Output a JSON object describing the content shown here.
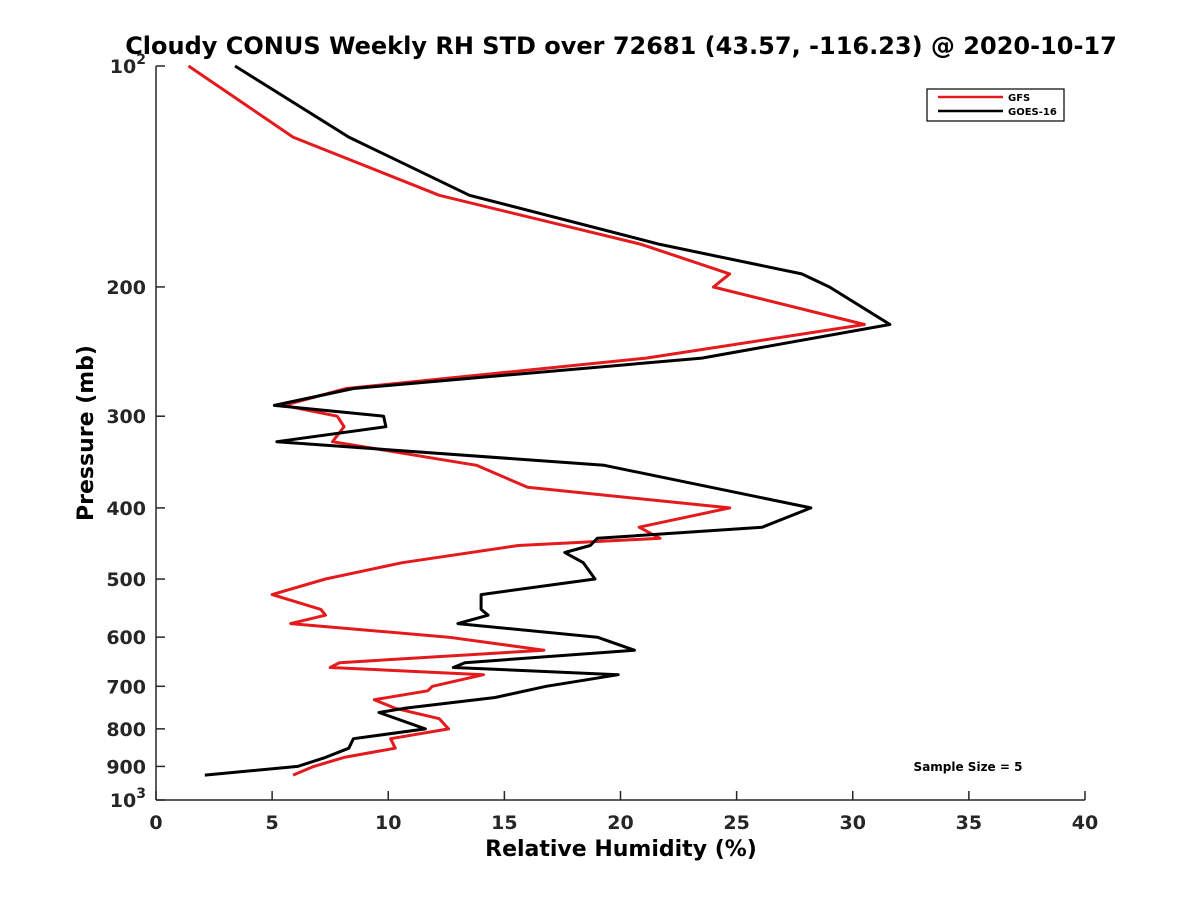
{
  "chart_data": {
    "type": "line",
    "title": "Cloudy CONUS Weekly RH STD over 72681 (43.57, -116.23) @ 2020-10-17",
    "xlabel": "Relative Humidity (%)",
    "ylabel": "Pressure (mb)",
    "xlim": [
      0,
      40
    ],
    "ylim": [
      100,
      1000
    ],
    "y_scale": "log",
    "y_reversed": true,
    "x_ticks": [
      "0",
      "5",
      "10",
      "15",
      "20",
      "25",
      "30",
      "35",
      "40"
    ],
    "y_ticks": [
      {
        "value": 100,
        "base": "10",
        "exp": "2"
      },
      {
        "value": 200,
        "label": "200"
      },
      {
        "value": 300,
        "label": "300"
      },
      {
        "value": 400,
        "label": "400"
      },
      {
        "value": 500,
        "label": "500"
      },
      {
        "value": 600,
        "label": "600"
      },
      {
        "value": 700,
        "label": "700"
      },
      {
        "value": 800,
        "label": "800"
      },
      {
        "value": 900,
        "label": "900"
      },
      {
        "value": 1000,
        "base": "10",
        "exp": "3"
      }
    ],
    "legend_position": "top-right",
    "annotation": "Sample Size = 5",
    "series": [
      {
        "name": "GFS",
        "color": "#e41a1c",
        "points": [
          [
            1.4,
            100
          ],
          [
            5.9,
            125
          ],
          [
            12.2,
            150
          ],
          [
            20.9,
            175
          ],
          [
            24.7,
            192
          ],
          [
            24.0,
            200
          ],
          [
            30.5,
            225
          ],
          [
            21.1,
            250
          ],
          [
            8.2,
            275
          ],
          [
            5.5,
            290
          ],
          [
            7.8,
            300
          ],
          [
            8.1,
            310
          ],
          [
            7.6,
            325
          ],
          [
            13.8,
            350
          ],
          [
            16.0,
            375
          ],
          [
            24.7,
            400
          ],
          [
            20.8,
            425
          ],
          [
            21.7,
            440
          ],
          [
            15.6,
            450
          ],
          [
            10.6,
            475
          ],
          [
            7.3,
            500
          ],
          [
            5.0,
            525
          ],
          [
            7.1,
            550
          ],
          [
            7.3,
            560
          ],
          [
            5.8,
            575
          ],
          [
            12.6,
            600
          ],
          [
            16.7,
            625
          ],
          [
            7.9,
            650
          ],
          [
            7.5,
            660
          ],
          [
            14.1,
            675
          ],
          [
            11.9,
            700
          ],
          [
            11.7,
            710
          ],
          [
            9.4,
            730
          ],
          [
            10.3,
            750
          ],
          [
            12.2,
            775
          ],
          [
            12.6,
            800
          ],
          [
            10.1,
            825
          ],
          [
            10.3,
            850
          ],
          [
            8.1,
            875
          ],
          [
            6.8,
            900
          ],
          [
            5.9,
            925
          ]
        ]
      },
      {
        "name": "GOES-16",
        "color": "#000000",
        "points": [
          [
            3.4,
            100
          ],
          [
            8.3,
            125
          ],
          [
            13.5,
            150
          ],
          [
            21.7,
            175
          ],
          [
            27.8,
            192
          ],
          [
            29.0,
            200
          ],
          [
            31.6,
            225
          ],
          [
            23.5,
            250
          ],
          [
            8.5,
            275
          ],
          [
            5.1,
            290
          ],
          [
            9.8,
            300
          ],
          [
            9.9,
            310
          ],
          [
            5.2,
            325
          ],
          [
            19.3,
            350
          ],
          [
            28.2,
            400
          ],
          [
            26.1,
            425
          ],
          [
            19.0,
            440
          ],
          [
            18.7,
            450
          ],
          [
            17.6,
            460
          ],
          [
            18.4,
            475
          ],
          [
            18.9,
            500
          ],
          [
            14.0,
            525
          ],
          [
            14.0,
            550
          ],
          [
            14.3,
            560
          ],
          [
            13.0,
            575
          ],
          [
            19.0,
            600
          ],
          [
            20.6,
            625
          ],
          [
            13.3,
            650
          ],
          [
            12.8,
            660
          ],
          [
            19.9,
            675
          ],
          [
            16.8,
            700
          ],
          [
            14.6,
            725
          ],
          [
            10.7,
            750
          ],
          [
            9.6,
            760
          ],
          [
            11.6,
            800
          ],
          [
            8.5,
            825
          ],
          [
            8.3,
            850
          ],
          [
            7.3,
            875
          ],
          [
            6.1,
            900
          ],
          [
            2.1,
            925
          ]
        ]
      }
    ]
  }
}
